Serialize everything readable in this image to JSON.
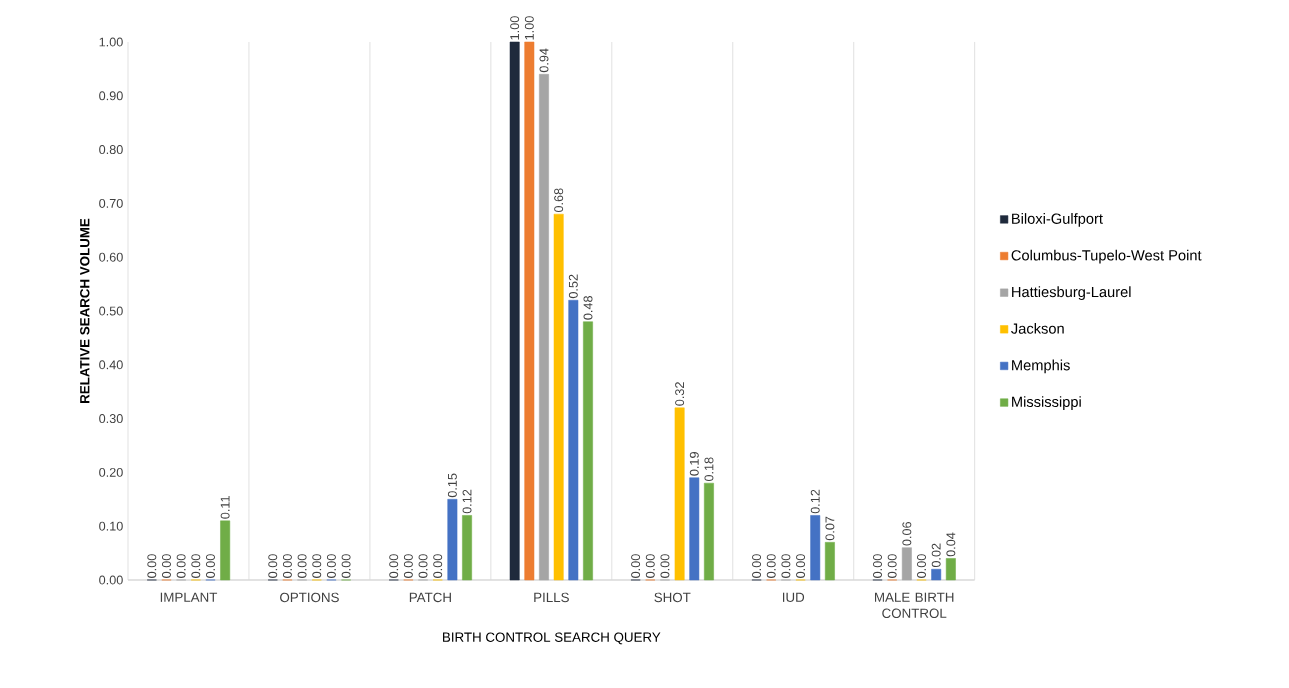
{
  "chart_data": {
    "type": "bar",
    "xlabel": "BIRTH CONTROL SEARCH QUERY",
    "ylabel": "RELATIVE SEARCH VOLUME",
    "categories": [
      "IMPLANT",
      "OPTIONS",
      "PATCH",
      "PILLS",
      "SHOT",
      "IUD",
      "MALE BIRTH CONTROL"
    ],
    "series": [
      {
        "name": "Biloxi-Gulfport",
        "color": "#1f2a3c",
        "values": [
          0,
          0,
          0,
          1.0,
          0,
          0,
          0
        ],
        "value_labels": [
          "0.00",
          "0.00",
          "0.00",
          "1.00",
          "0.00",
          "0.00",
          "0.00"
        ]
      },
      {
        "name": "Columbus-Tupelo-West Point",
        "color": "#ed7d31",
        "values": [
          0,
          0,
          0,
          1.0,
          0,
          0,
          0
        ],
        "value_labels": [
          "0.00",
          "0.00",
          "0.00",
          "1.00",
          "0.00",
          "0.00",
          "0.00"
        ]
      },
      {
        "name": "Hattiesburg-Laurel",
        "color": "#a5a5a5",
        "values": [
          0,
          0,
          0,
          0.94,
          0,
          0,
          0.06
        ],
        "value_labels": [
          "0.00",
          "0.00",
          "0.00",
          "0.94",
          "0.00",
          "0.00",
          "0.06"
        ]
      },
      {
        "name": "Jackson",
        "color": "#ffc000",
        "values": [
          0,
          0,
          0,
          0.68,
          0.32,
          0,
          0
        ],
        "value_labels": [
          "0.00",
          "0.00",
          "0.00",
          "0.68",
          "0.32",
          "0.00",
          "0.00"
        ]
      },
      {
        "name": "Memphis",
        "color": "#4472c4",
        "values": [
          0,
          0,
          0.15,
          0.52,
          0.19,
          0.12,
          0.02
        ],
        "value_labels": [
          "0.00",
          "0.00",
          "0.15",
          "0.52",
          "0.19",
          "0.12",
          "0.02"
        ]
      },
      {
        "name": "Mississippi",
        "color": "#70ad47",
        "values": [
          0.11,
          0,
          0.12,
          0.48,
          0.18,
          0.07,
          0.04
        ],
        "value_labels": [
          "0.11",
          "0.00",
          "0.12",
          "0.48",
          "0.18",
          "0.07",
          "0.04"
        ]
      }
    ],
    "ylim": [
      0,
      1
    ],
    "yticks": [
      {
        "value": 0,
        "label": "0.00"
      },
      {
        "value": 0.1,
        "label": "0.10"
      },
      {
        "value": 0.2,
        "label": "0.20"
      },
      {
        "value": 0.3,
        "label": "0.30"
      },
      {
        "value": 0.4,
        "label": "0.40"
      },
      {
        "value": 0.5,
        "label": "0.50"
      },
      {
        "value": 0.6,
        "label": "0.60"
      },
      {
        "value": 0.7,
        "label": "0.70"
      },
      {
        "value": 0.8,
        "label": "0.80"
      },
      {
        "value": 0.9,
        "label": "0.90"
      },
      {
        "value": 1,
        "label": "1.00"
      }
    ],
    "grid": "x",
    "legend": "right"
  }
}
